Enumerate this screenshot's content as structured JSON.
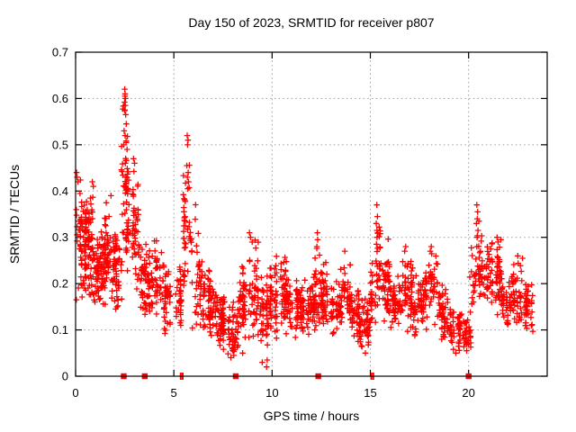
{
  "chart_data": {
    "type": "scatter",
    "title": "Day 150 of 2023, SRMTID for receiver p807",
    "xlabel": "GPS time / hours",
    "ylabel": "SRMTID / TECUs",
    "xlim": [
      0,
      24
    ],
    "ylim": [
      0,
      0.7
    ],
    "xtick_values": [
      0,
      5,
      10,
      15,
      20
    ],
    "xtick_labels": [
      "0",
      "5",
      "10",
      "15",
      "20"
    ],
    "ytick_values": [
      0,
      0.1,
      0.2,
      0.3,
      0.4,
      0.5,
      0.6,
      0.7
    ],
    "ytick_labels": [
      "0",
      "0.1",
      "0.2",
      "0.3",
      "0.4",
      "0.5",
      "0.6",
      "0.7"
    ],
    "grid": true,
    "legend": "none",
    "marker": "plus",
    "series_color": "#ff0000",
    "grid_color": "#9c9c9c",
    "frame_color": "#000000",
    "background_color": "#ffffff",
    "seed": 20230150,
    "density_bands": [
      [
        0.0,
        0.3,
        0.16,
        0.44,
        40
      ],
      [
        0.3,
        0.6,
        0.18,
        0.4,
        45
      ],
      [
        0.6,
        0.9,
        0.16,
        0.42,
        45
      ],
      [
        0.9,
        1.2,
        0.13,
        0.33,
        40
      ],
      [
        1.2,
        1.5,
        0.12,
        0.35,
        40
      ],
      [
        1.5,
        1.8,
        0.14,
        0.39,
        42
      ],
      [
        1.8,
        2.1,
        0.13,
        0.36,
        40
      ],
      [
        2.1,
        2.35,
        0.14,
        0.3,
        22
      ],
      [
        2.35,
        2.65,
        0.22,
        0.6,
        45
      ],
      [
        2.65,
        2.95,
        0.22,
        0.47,
        32
      ],
      [
        2.95,
        3.25,
        0.17,
        0.44,
        32
      ],
      [
        3.25,
        3.6,
        0.13,
        0.3,
        30
      ],
      [
        3.6,
        4.0,
        0.1,
        0.32,
        38
      ],
      [
        4.0,
        4.5,
        0.1,
        0.3,
        38
      ],
      [
        4.5,
        5.0,
        0.08,
        0.26,
        40
      ],
      [
        5.0,
        5.5,
        0.08,
        0.24,
        34
      ],
      [
        5.5,
        5.85,
        0.12,
        0.5,
        36
      ],
      [
        5.85,
        6.3,
        0.1,
        0.38,
        32
      ],
      [
        6.3,
        6.8,
        0.08,
        0.27,
        42
      ],
      [
        6.8,
        7.3,
        0.07,
        0.22,
        48
      ],
      [
        7.3,
        7.8,
        0.05,
        0.18,
        52
      ],
      [
        7.8,
        8.3,
        0.04,
        0.16,
        48
      ],
      [
        8.3,
        8.8,
        0.07,
        0.26,
        48
      ],
      [
        8.8,
        9.3,
        0.07,
        0.31,
        48
      ],
      [
        9.3,
        9.8,
        0.04,
        0.22,
        48
      ],
      [
        9.8,
        10.3,
        0.06,
        0.27,
        48
      ],
      [
        10.3,
        10.8,
        0.09,
        0.27,
        48
      ],
      [
        10.8,
        11.3,
        0.08,
        0.24,
        48
      ],
      [
        11.3,
        11.8,
        0.08,
        0.21,
        48
      ],
      [
        11.8,
        12.2,
        0.09,
        0.22,
        38
      ],
      [
        12.2,
        12.5,
        0.1,
        0.29,
        26
      ],
      [
        12.5,
        13.0,
        0.09,
        0.25,
        46
      ],
      [
        13.0,
        13.5,
        0.08,
        0.22,
        46
      ],
      [
        13.5,
        14.0,
        0.09,
        0.27,
        46
      ],
      [
        14.0,
        14.5,
        0.07,
        0.2,
        46
      ],
      [
        14.5,
        15.0,
        0.05,
        0.18,
        42
      ],
      [
        15.0,
        15.25,
        0.08,
        0.25,
        22
      ],
      [
        15.25,
        15.55,
        0.12,
        0.34,
        28
      ],
      [
        15.55,
        16.0,
        0.1,
        0.3,
        40
      ],
      [
        16.0,
        16.5,
        0.09,
        0.22,
        46
      ],
      [
        16.5,
        17.2,
        0.09,
        0.28,
        56
      ],
      [
        17.2,
        17.8,
        0.08,
        0.22,
        50
      ],
      [
        17.8,
        18.4,
        0.09,
        0.28,
        50
      ],
      [
        18.4,
        19.0,
        0.07,
        0.2,
        50
      ],
      [
        19.0,
        19.6,
        0.05,
        0.16,
        46
      ],
      [
        19.6,
        20.1,
        0.05,
        0.14,
        36
      ],
      [
        20.1,
        20.35,
        0.12,
        0.28,
        18
      ],
      [
        20.35,
        20.65,
        0.14,
        0.35,
        28
      ],
      [
        20.65,
        21.2,
        0.14,
        0.3,
        42
      ],
      [
        21.2,
        21.7,
        0.12,
        0.3,
        38
      ],
      [
        21.7,
        22.2,
        0.1,
        0.22,
        42
      ],
      [
        22.2,
        22.8,
        0.08,
        0.26,
        42
      ],
      [
        22.8,
        23.5,
        0.09,
        0.21,
        44
      ]
    ],
    "feature_points": [
      [
        2.5,
        0.62
      ],
      [
        2.52,
        0.61
      ],
      [
        2.51,
        0.605
      ],
      [
        2.54,
        0.6
      ],
      [
        2.49,
        0.592
      ],
      [
        2.53,
        0.585
      ],
      [
        2.5,
        0.575
      ],
      [
        2.55,
        0.565
      ],
      [
        2.47,
        0.53
      ],
      [
        2.52,
        0.52
      ],
      [
        2.57,
        0.505
      ],
      [
        2.62,
        0.49
      ],
      [
        2.45,
        0.5
      ],
      [
        5.68,
        0.52
      ],
      [
        5.72,
        0.51
      ],
      [
        5.7,
        0.5
      ],
      [
        5.66,
        0.455
      ],
      [
        5.73,
        0.44
      ],
      [
        5.69,
        0.43
      ],
      [
        5.75,
        0.42
      ],
      [
        5.71,
        0.405
      ],
      [
        15.33,
        0.37
      ],
      [
        15.36,
        0.345
      ],
      [
        15.3,
        0.33
      ],
      [
        15.38,
        0.31
      ],
      [
        15.34,
        0.3
      ],
      [
        15.31,
        0.285
      ],
      [
        20.42,
        0.37
      ],
      [
        20.46,
        0.355
      ],
      [
        20.44,
        0.34
      ],
      [
        20.4,
        0.33
      ],
      [
        20.48,
        0.315
      ],
      [
        20.43,
        0.3
      ],
      [
        0.05,
        0.44
      ],
      [
        0.08,
        0.43
      ],
      [
        0.12,
        0.42
      ],
      [
        0.85,
        0.42
      ],
      [
        0.9,
        0.41
      ],
      [
        1.8,
        0.39
      ],
      [
        2.95,
        0.47
      ],
      [
        3.0,
        0.46
      ],
      [
        8.85,
        0.31
      ],
      [
        8.9,
        0.3
      ],
      [
        12.3,
        0.31
      ],
      [
        12.32,
        0.295
      ],
      [
        12.28,
        0.28
      ],
      [
        13.7,
        0.27
      ],
      [
        16.8,
        0.28
      ],
      [
        16.75,
        0.27
      ],
      [
        18.1,
        0.28
      ],
      [
        18.05,
        0.27
      ],
      [
        21.45,
        0.3
      ],
      [
        21.5,
        0.29
      ],
      [
        22.5,
        0.26
      ],
      [
        9.72,
        0.02
      ],
      [
        9.75,
        0.035
      ],
      [
        9.5,
        0.03
      ],
      [
        8.5,
        0.05
      ],
      [
        7.9,
        0.04
      ],
      [
        8.05,
        0.045
      ],
      [
        14.75,
        0.05
      ],
      [
        19.35,
        0.05
      ],
      [
        19.9,
        0.055
      ]
    ],
    "axis_event_squares": [
      2.45,
      3.52,
      8.15,
      12.35,
      20.0
    ],
    "axis_event_bars": [
      5.35,
      5.45,
      15.05,
      15.15
    ]
  }
}
